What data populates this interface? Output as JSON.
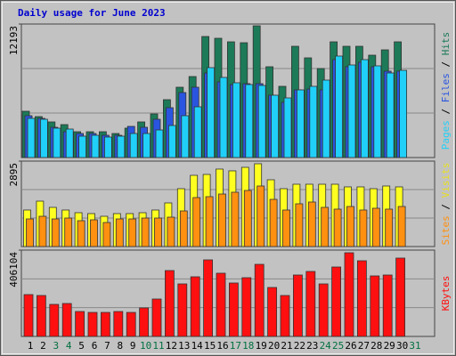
{
  "chart_data": [
    {
      "type": "bar",
      "title": "Daily usage for June 2023",
      "categories": [
        "1",
        "2",
        "3",
        "4",
        "5",
        "6",
        "7",
        "8",
        "9",
        "10",
        "11",
        "12",
        "13",
        "14",
        "15",
        "16",
        "17",
        "18",
        "19",
        "20",
        "21",
        "22",
        "23",
        "24",
        "25",
        "26",
        "27",
        "28",
        "29",
        "30",
        "31"
      ],
      "category_colors": [
        "#000000",
        "#000000",
        "#007040",
        "#007040",
        "#000000",
        "#000000",
        "#000000",
        "#000000",
        "#000000",
        "#007040",
        "#007040",
        "#000000",
        "#000000",
        "#000000",
        "#000000",
        "#000000",
        "#007040",
        "#007040",
        "#000000",
        "#000000",
        "#000000",
        "#000000",
        "#000000",
        "#007040",
        "#007040",
        "#000000",
        "#000000",
        "#000000",
        "#000000",
        "#000000",
        "#007040"
      ],
      "ylim": [
        0,
        12193
      ],
      "yticks": [
        12193
      ],
      "legend_separator": " / ",
      "series": [
        {
          "name": "Pages",
          "color": "#20d0f8",
          "values": [
            3577,
            3496,
            2683,
            2601,
            1951,
            2032,
            1870,
            1951,
            2195,
            2195,
            2520,
            2926,
            3821,
            4634,
            8210,
            7316,
            6828,
            6666,
            6585,
            5690,
            5446,
            6178,
            6503,
            7072,
            9267,
            8454,
            8942,
            8373,
            7722,
            7966,
            null
          ]
        },
        {
          "name": "Files",
          "color": "#2a55e0",
          "values": [
            3820,
            3577,
            2764,
            2357,
            2195,
            2195,
            2032,
            2032,
            2845,
            2764,
            3496,
            4552,
            5934,
            6422,
            7723,
            6910,
            6666,
            6747,
            6747,
            5690,
            5040,
            6178,
            6259,
            6178,
            8942,
            8292,
            8698,
            8292,
            7885,
            7885,
            null
          ]
        },
        {
          "name": "Hits",
          "color": "#1c7a58",
          "values": [
            4227,
            3739,
            3252,
            3008,
            2357,
            2357,
            2357,
            2195,
            2683,
            3252,
            3983,
            5284,
            6422,
            7397,
            11055,
            10893,
            10568,
            10486,
            12031,
            8292,
            6503,
            10161,
            9104,
            8129,
            10568,
            10161,
            10161,
            9348,
            9836,
            10568,
            null
          ]
        }
      ]
    },
    {
      "type": "bar",
      "ylim": [
        0,
        2895
      ],
      "yticks": [
        2895
      ],
      "series": [
        {
          "name": "Sites",
          "color": "#ff9010",
          "values": [
            935,
            1025,
            935,
            965,
            875,
            905,
            814,
            935,
            935,
            965,
            965,
            995,
            1206,
            1659,
            1689,
            1779,
            1840,
            1900,
            2051,
            1598,
            1237,
            1448,
            1508,
            1327,
            1267,
            1357,
            1237,
            1297,
            1267,
            1357,
            null
          ]
        },
        {
          "name": "Visits",
          "color": "#ffff20",
          "values": [
            1237,
            1538,
            1327,
            1237,
            1146,
            1116,
            1025,
            1116,
            1116,
            1146,
            1237,
            1478,
            1960,
            2413,
            2443,
            2624,
            2564,
            2684,
            2805,
            2262,
            1960,
            2111,
            2111,
            2111,
            2111,
            2021,
            2021,
            1960,
            2051,
            2021,
            null
          ]
        }
      ]
    },
    {
      "type": "bar",
      "ylim": [
        0,
        406104
      ],
      "yticks": [
        406104
      ],
      "series": [
        {
          "name": "KBytes",
          "color": "#ff1010",
          "values": [
            196800,
            192600,
            150700,
            154900,
            117200,
            113000,
            113000,
            117200,
            113000,
            134000,
            175900,
            309800,
            247000,
            280500,
            360100,
            297300,
            251200,
            276300,
            339100,
            230300,
            192600,
            288900,
            305600,
            247000,
            326600,
            393600,
            355900,
            284700,
            288900,
            368500,
            null
          ]
        }
      ]
    }
  ]
}
